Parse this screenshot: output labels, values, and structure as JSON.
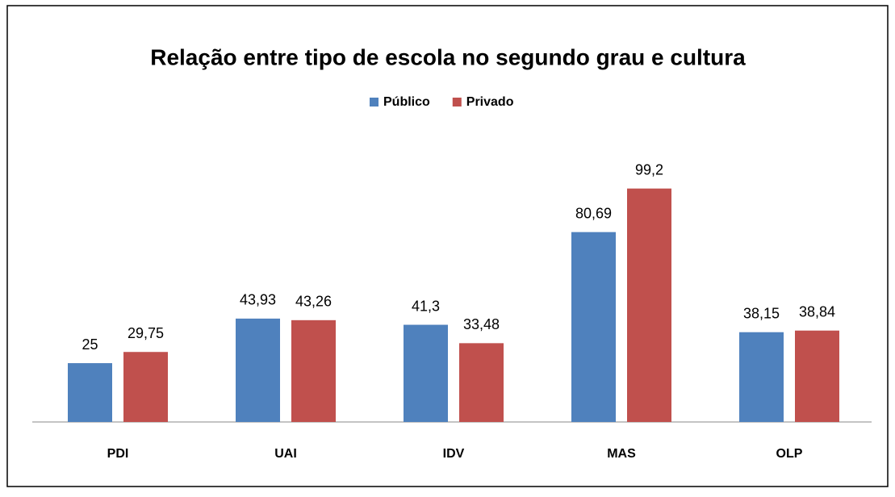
{
  "chart_data": {
    "type": "bar",
    "title": "Relação entre tipo de escola no segundo grau e cultura",
    "categories": [
      "PDI",
      "UAI",
      "IDV",
      "MAS",
      "OLP"
    ],
    "series": [
      {
        "name": "Público",
        "color": "#4f81bd",
        "values": [
          25,
          43.93,
          41.3,
          80.69,
          38.15
        ],
        "value_labels": [
          "25",
          "43,93",
          "41,3",
          "80,69",
          "38,15"
        ]
      },
      {
        "name": "Privado",
        "color": "#c0504d",
        "values": [
          29.75,
          43.26,
          33.48,
          99.2,
          38.84
        ],
        "value_labels": [
          "29,75",
          "43,26",
          "33,48",
          "99,2",
          "38,84"
        ]
      }
    ],
    "ylim": [
      0,
      120
    ],
    "legend": "top"
  }
}
